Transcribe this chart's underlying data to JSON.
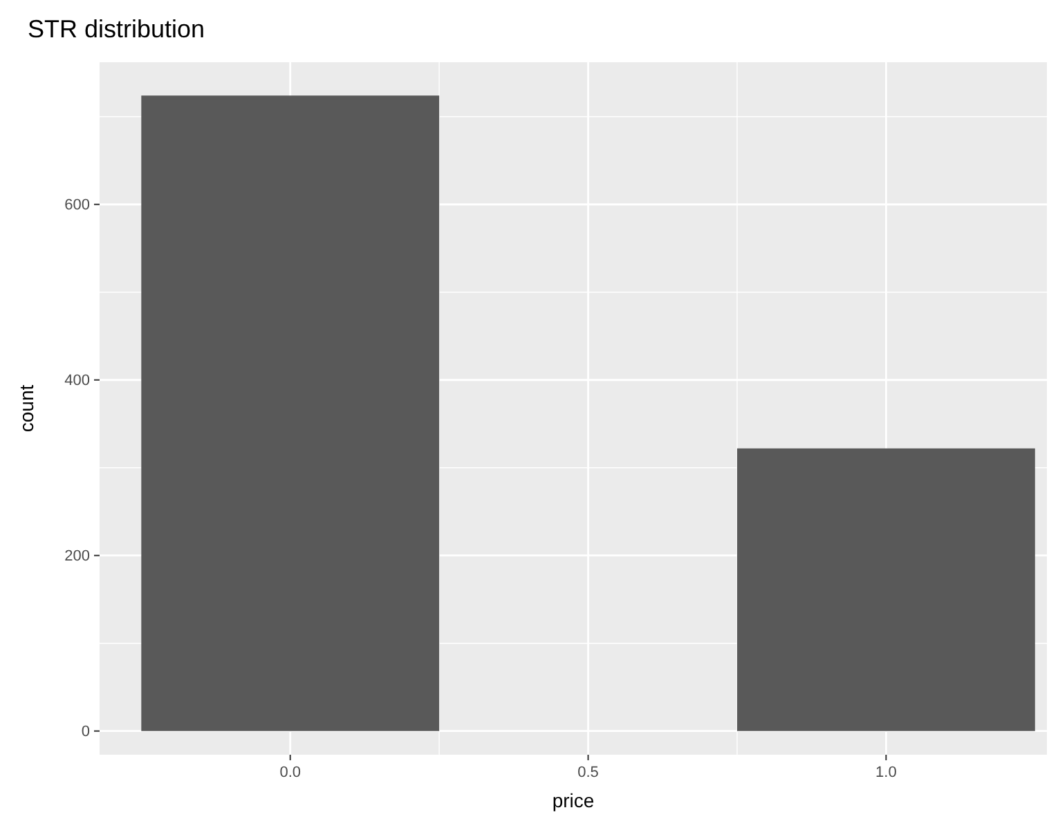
{
  "chart_data": {
    "type": "histogram",
    "title": "STR distribution",
    "xlabel": "price",
    "ylabel": "count",
    "bins": [
      -0.25,
      0.25,
      0.75,
      1.25
    ],
    "values": [
      724,
      0,
      322
    ],
    "color": "#595959",
    "xlim": [
      -0.32,
      1.27
    ],
    "xticks": [
      {
        "value": 0,
        "label": "0.0"
      },
      {
        "value": 0.5,
        "label": "0.5"
      },
      {
        "value": 1,
        "label": "1.0"
      }
    ],
    "ylim": [
      -27,
      762
    ],
    "yticks": [
      0,
      200,
      400,
      600
    ],
    "grid": true
  }
}
